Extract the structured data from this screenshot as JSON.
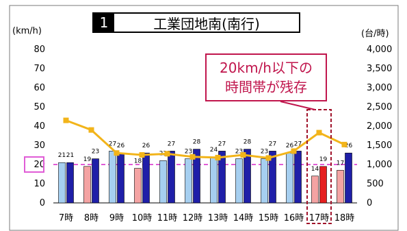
{
  "title": {
    "number": "1",
    "text": "工業団地南(南行)"
  },
  "callout": {
    "line1": "20km/h以下の",
    "line2": "時間帯が残存"
  },
  "chart_data": {
    "type": "bar",
    "categories": [
      "7時",
      "8時",
      "9時",
      "10時",
      "11時",
      "12時",
      "13時",
      "14時",
      "15時",
      "16時",
      "17時",
      "18時"
    ],
    "series": [
      {
        "axis": "left",
        "kind": "bar",
        "values": [
          21,
          19,
          27,
          18,
          22,
          23,
          24,
          23,
          23,
          26,
          14,
          17
        ]
      },
      {
        "axis": "left",
        "kind": "bar",
        "values": [
          21,
          23,
          26,
          26,
          27,
          28,
          27,
          28,
          27,
          27,
          19,
          26
        ]
      },
      {
        "axis": "right",
        "kind": "line",
        "values": [
          2150,
          1900,
          1300,
          1250,
          1280,
          1200,
          1180,
          1250,
          1170,
          1350,
          1830,
          1520
        ]
      }
    ],
    "y_left": {
      "unit": "(km/h)",
      "min": 0,
      "max": 80,
      "ticks": [
        "0",
        "10",
        "20",
        "30",
        "40",
        "50",
        "60",
        "70",
        "80"
      ]
    },
    "y_right": {
      "unit": "(台/時)",
      "min": 0,
      "max": 4000,
      "ticks": [
        "0",
        "500",
        "1,000",
        "1,500",
        "2,000",
        "2,500",
        "3,000",
        "3,500",
        "4,000"
      ]
    },
    "reference_line": {
      "value": 20,
      "label": "20"
    },
    "highlight_category": "17時",
    "colors": {
      "bar_a": "#a6cff0",
      "bar_a_low": "#f4a3a3",
      "bar_a_hl": "#f4a3a3",
      "bar_b": "#1f1fa8",
      "bar_b_hl": "#e51f1f",
      "line": "#f2b41a",
      "reference": "#e05cd6",
      "highlight_box": "#a0122a",
      "callout": "#c0154c"
    }
  }
}
